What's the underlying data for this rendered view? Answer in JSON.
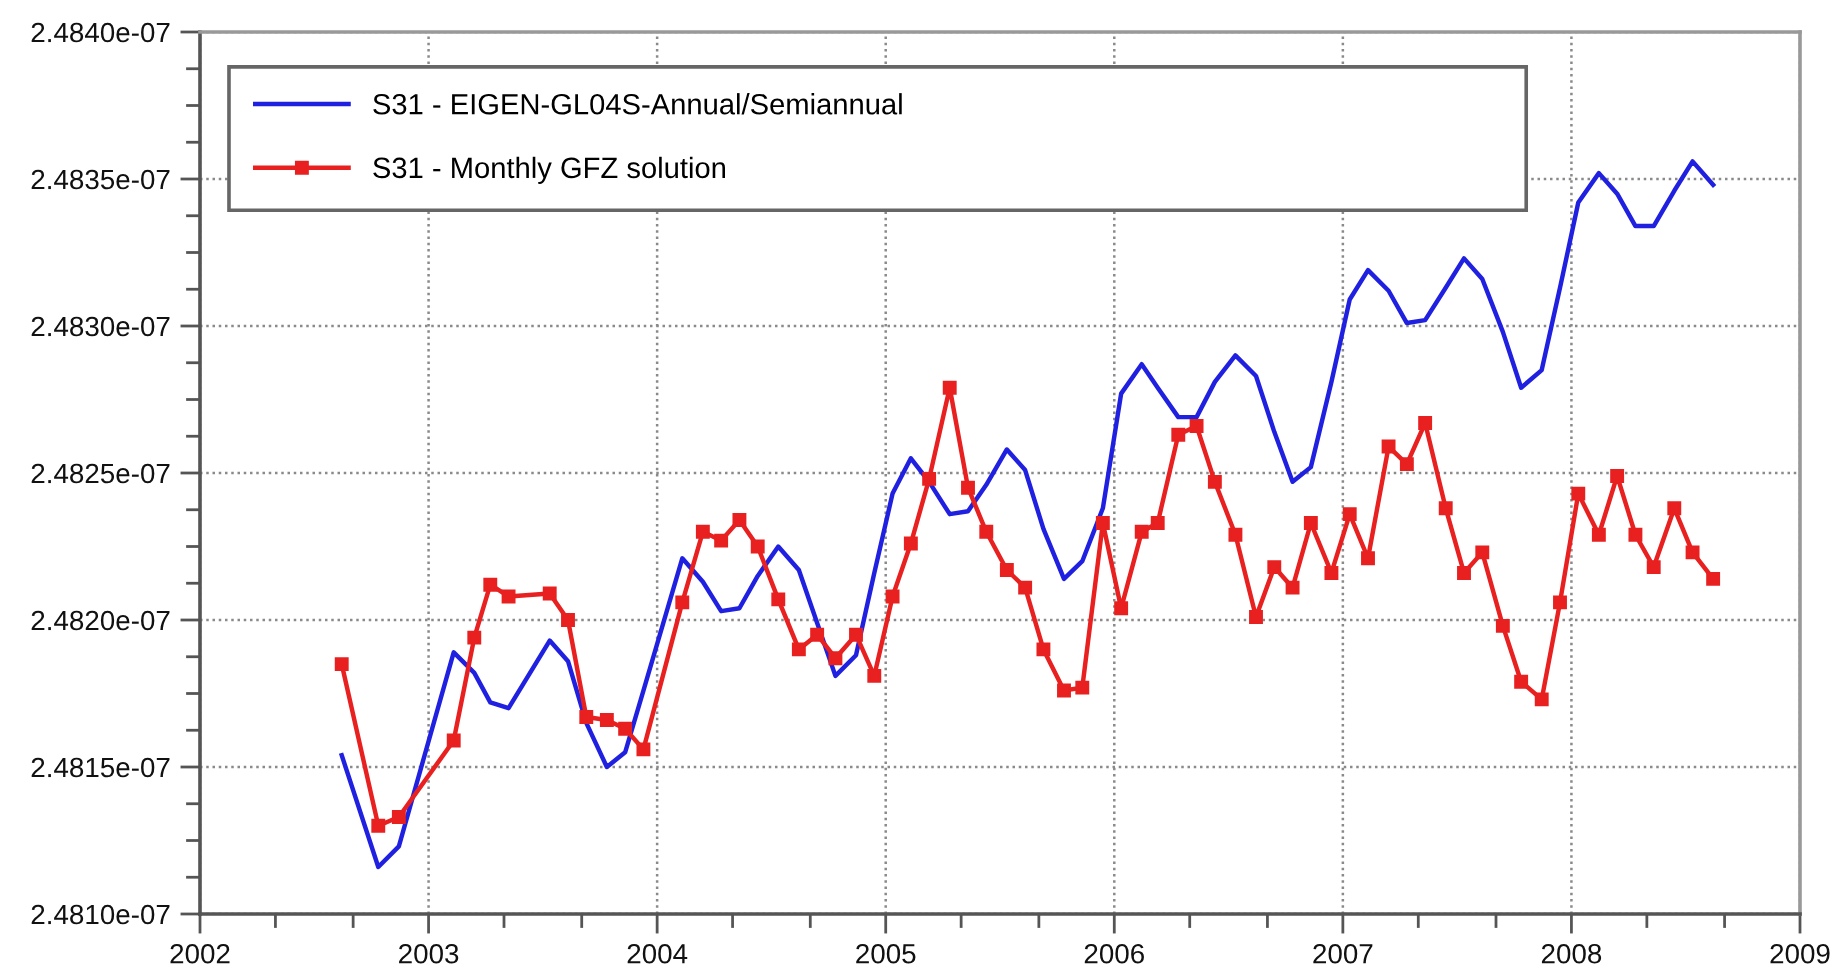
{
  "chart_data": {
    "type": "line",
    "x": [
      2002.62,
      2002.78,
      2002.87,
      2003.11,
      2003.2,
      2003.27,
      2003.35,
      2003.53,
      2003.61,
      2003.69,
      2003.78,
      2003.86,
      2003.94,
      2004.11,
      2004.2,
      2004.28,
      2004.36,
      2004.44,
      2004.53,
      2004.62,
      2004.7,
      2004.78,
      2004.87,
      2004.95,
      2005.03,
      2005.11,
      2005.19,
      2005.28,
      2005.36,
      2005.44,
      2005.53,
      2005.61,
      2005.69,
      2005.78,
      2005.86,
      2005.95,
      2006.03,
      2006.12,
      2006.19,
      2006.28,
      2006.36,
      2006.44,
      2006.53,
      2006.62,
      2006.7,
      2006.78,
      2006.86,
      2006.95,
      2007.03,
      2007.11,
      2007.2,
      2007.28,
      2007.36,
      2007.45,
      2007.53,
      2007.61,
      2007.7,
      2007.78,
      2007.87,
      2007.95,
      2008.03,
      2008.12,
      2008.2,
      2008.28,
      2008.36,
      2008.45,
      2008.53,
      2008.62
    ],
    "series": [
      {
        "name": "S31 - EIGEN-GL04S-Annual/Semiannual",
        "color": "#2020e0",
        "marker": "none",
        "line_style": "solid",
        "values": [
          2.48154e-07,
          2.48116e-07,
          2.48123e-07,
          2.48189e-07,
          2.48182e-07,
          2.48172e-07,
          2.4817e-07,
          2.48193e-07,
          2.48186e-07,
          2.48165e-07,
          2.4815e-07,
          2.48155e-07,
          2.48176e-07,
          2.48221e-07,
          2.48213e-07,
          2.48203e-07,
          2.48204e-07,
          2.48215e-07,
          2.48225e-07,
          2.48217e-07,
          2.48199e-07,
          2.48181e-07,
          2.48188e-07,
          2.48216e-07,
          2.48243e-07,
          2.48255e-07,
          2.48247e-07,
          2.48236e-07,
          2.48237e-07,
          2.48246e-07,
          2.48258e-07,
          2.48251e-07,
          2.48231e-07,
          2.48214e-07,
          2.4822e-07,
          2.48238e-07,
          2.48277e-07,
          2.48287e-07,
          2.48279e-07,
          2.48269e-07,
          2.48269e-07,
          2.48281e-07,
          2.4829e-07,
          2.48283e-07,
          2.48264e-07,
          2.48247e-07,
          2.48252e-07,
          2.48281e-07,
          2.48309e-07,
          2.48319e-07,
          2.48312e-07,
          2.48301e-07,
          2.48302e-07,
          2.48313e-07,
          2.48323e-07,
          2.48316e-07,
          2.48298e-07,
          2.48279e-07,
          2.48285e-07,
          2.48313e-07,
          2.48342e-07,
          2.48352e-07,
          2.48345e-07,
          2.48334e-07,
          2.48334e-07,
          2.48346e-07,
          2.48356e-07,
          2.48348e-07
        ]
      },
      {
        "name": "S31 - Monthly GFZ solution",
        "color": "#e82020",
        "marker": "square",
        "line_style": "solid",
        "values": [
          2.48185e-07,
          2.4813e-07,
          2.48133e-07,
          2.48159e-07,
          2.48194e-07,
          2.48212e-07,
          2.48208e-07,
          2.48209e-07,
          2.482e-07,
          2.48167e-07,
          2.48166e-07,
          2.48163e-07,
          2.48156e-07,
          2.48206e-07,
          2.4823e-07,
          2.48227e-07,
          2.48234e-07,
          2.48225e-07,
          2.48207e-07,
          2.4819e-07,
          2.48195e-07,
          2.48187e-07,
          2.48195e-07,
          2.48181e-07,
          2.48208e-07,
          2.48226e-07,
          2.48248e-07,
          2.48279e-07,
          2.48245e-07,
          2.4823e-07,
          2.48217e-07,
          2.48211e-07,
          2.4819e-07,
          2.48176e-07,
          2.48177e-07,
          2.48233e-07,
          2.48204e-07,
          2.4823e-07,
          2.48233e-07,
          2.48263e-07,
          2.48266e-07,
          2.48247e-07,
          2.48229e-07,
          2.48201e-07,
          2.48218e-07,
          2.48211e-07,
          2.48233e-07,
          2.48216e-07,
          2.48236e-07,
          2.48221e-07,
          2.48259e-07,
          2.48253e-07,
          2.48267e-07,
          2.48238e-07,
          2.48216e-07,
          2.48223e-07,
          2.48198e-07,
          2.48179e-07,
          2.48173e-07,
          2.48206e-07,
          2.48243e-07,
          2.48229e-07,
          2.48249e-07,
          2.48229e-07,
          2.48218e-07,
          2.48238e-07,
          2.48223e-07,
          2.48214e-07
        ]
      }
    ],
    "xlim": [
      2002,
      2009
    ],
    "xticks": [
      2002,
      {
        "value": 2002.33,
        "label": null
      },
      {
        "value": 2002.67,
        "label": null
      },
      2003,
      {
        "value": 2003.33,
        "label": null
      },
      {
        "value": 2003.67,
        "label": null
      },
      2004,
      {
        "value": 2004.33,
        "label": null
      },
      {
        "value": 2004.67,
        "label": null
      },
      2005,
      {
        "value": 2005.33,
        "label": null
      },
      {
        "value": 2005.67,
        "label": null
      },
      2006,
      {
        "value": 2006.33,
        "label": null
      },
      {
        "value": 2006.67,
        "label": null
      },
      2007,
      {
        "value": 2007.33,
        "label": null
      },
      {
        "value": 2007.67,
        "label": null
      },
      2008,
      {
        "value": 2008.33,
        "label": null
      },
      {
        "value": 2008.67,
        "label": null
      },
      2009
    ],
    "ylim": [
      2.481e-07,
      2.484e-07
    ],
    "yticks": [
      {
        "value": 2.481e-07,
        "label": "2.4810e-07"
      },
      {
        "value": 2.481125e-07,
        "label": null
      },
      {
        "value": 2.48125e-07,
        "label": null
      },
      {
        "value": 2.481375e-07,
        "label": null
      },
      {
        "value": 2.4815e-07,
        "label": "2.4815e-07"
      },
      {
        "value": 2.481625e-07,
        "label": null
      },
      {
        "value": 2.48175e-07,
        "label": null
      },
      {
        "value": 2.481875e-07,
        "label": null
      },
      {
        "value": 2.482e-07,
        "label": "2.4820e-07"
      },
      {
        "value": 2.482125e-07,
        "label": null
      },
      {
        "value": 2.48225e-07,
        "label": null
      },
      {
        "value": 2.482375e-07,
        "label": null
      },
      {
        "value": 2.4825e-07,
        "label": "2.4825e-07"
      },
      {
        "value": 2.482625e-07,
        "label": null
      },
      {
        "value": 2.48275e-07,
        "label": null
      },
      {
        "value": 2.482875e-07,
        "label": null
      },
      {
        "value": 2.483e-07,
        "label": "2.4830e-07"
      },
      {
        "value": 2.483125e-07,
        "label": null
      },
      {
        "value": 2.48325e-07,
        "label": null
      },
      {
        "value": 2.483375e-07,
        "label": null
      },
      {
        "value": 2.4835e-07,
        "label": "2.4835e-07"
      },
      {
        "value": 2.483625e-07,
        "label": null
      },
      {
        "value": 2.48375e-07,
        "label": null
      },
      {
        "value": 2.483875e-07,
        "label": null
      },
      {
        "value": 2.484e-07,
        "label": "2.4840e-07"
      }
    ],
    "grid": true,
    "legend": "top left"
  }
}
